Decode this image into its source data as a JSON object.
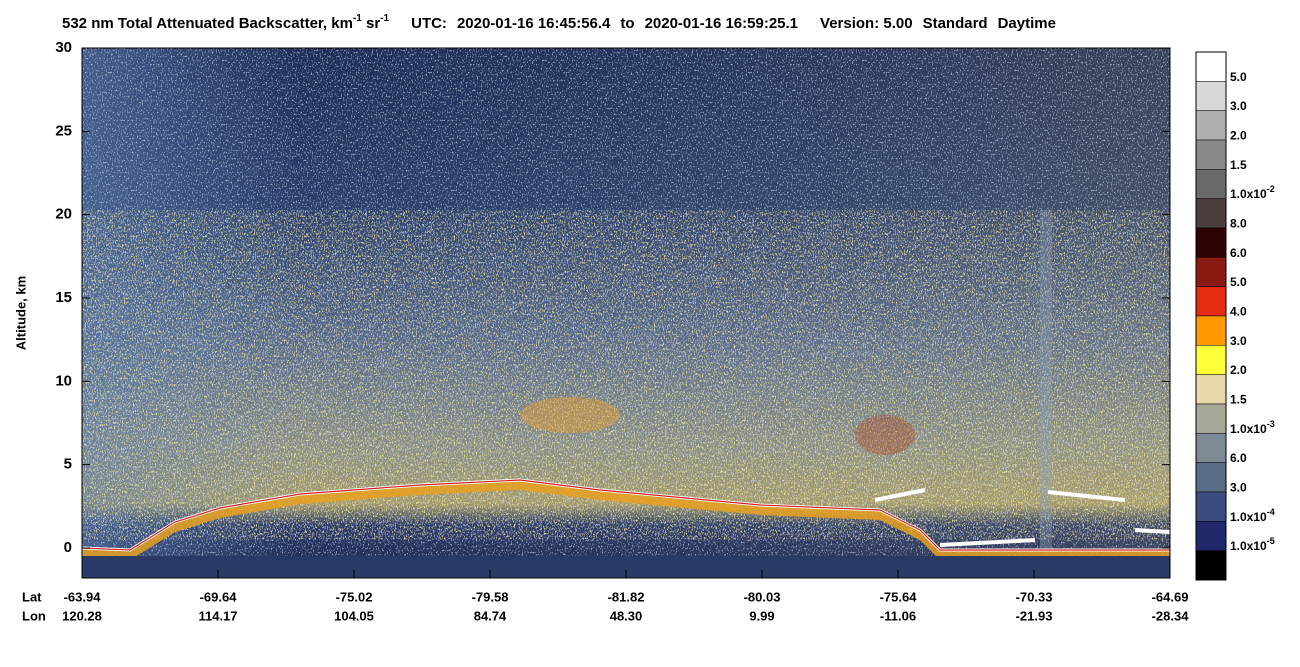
{
  "chart_data": {
    "type": "heatmap",
    "title": {
      "parts": [
        "532 nm Total Attenuated Backscatter, km",
        "-1",
        " sr",
        "-1"
      ],
      "utc_label": "UTC:",
      "start": "2020-01-16 16:45:56.4",
      "to": "to",
      "end": "2020-01-16 16:59:25.1",
      "version": "Version: 5.00",
      "product": "Standard",
      "daytime": "Daytime"
    },
    "ylabel": "Altitude, km",
    "ylim": [
      -1.8,
      30
    ],
    "yticks": [
      0,
      5,
      10,
      15,
      20,
      25,
      30
    ],
    "x_row_labels": [
      "Lat",
      "Lon"
    ],
    "lat": [
      "-63.94",
      "-69.64",
      "-75.02",
      "-79.58",
      "-81.82",
      "-80.03",
      "-75.64",
      "-70.33",
      "-64.69"
    ],
    "lon": [
      "120.28",
      "114.17",
      "104.05",
      "84.74",
      "48.30",
      "9.99",
      "-11.06",
      "-21.93",
      "-28.34"
    ],
    "colorbar": {
      "colors": [
        "#ffffff",
        "#d8d8d8",
        "#b0b0b0",
        "#8a8a8a",
        "#6a6a6a",
        "#4a3f3c",
        "#2e0303",
        "#8b1a12",
        "#e42a10",
        "#ff9a00",
        "#ffff3a",
        "#ead9a8",
        "#a8a898",
        "#7d8a96",
        "#586c86",
        "#3a4c80",
        "#22286c",
        "#000000"
      ],
      "labels": [
        {
          "text": "5.0"
        },
        {
          "text": "3.0"
        },
        {
          "text": "2.0"
        },
        {
          "text": "1.5"
        },
        {
          "text": "1.0x10",
          "exp": "-2"
        },
        {
          "text": "8.0"
        },
        {
          "text": "6.0"
        },
        {
          "text": "5.0"
        },
        {
          "text": "4.0"
        },
        {
          "text": "3.0"
        },
        {
          "text": "2.0"
        },
        {
          "text": "1.5"
        },
        {
          "text": "1.0x10",
          "exp": "-3"
        },
        {
          "text": "6.0"
        },
        {
          "text": "3.0"
        },
        {
          "text": "1.0x10",
          "exp": "-4"
        },
        {
          "text": "1.0x10",
          "exp": "-5"
        }
      ]
    }
  }
}
